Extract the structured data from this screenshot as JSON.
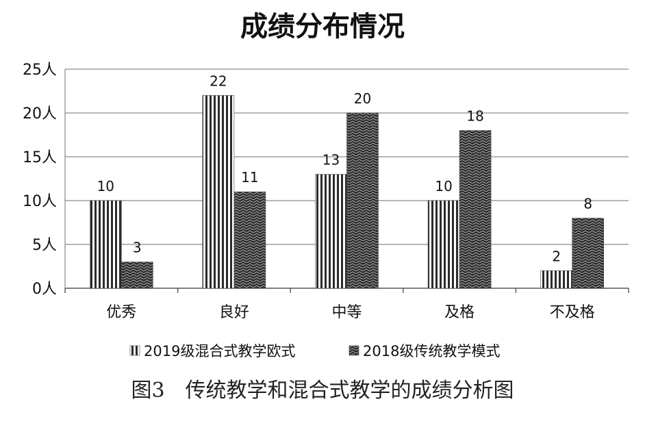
{
  "chart_data": {
    "type": "bar",
    "title": "成绩分布情况",
    "categories": [
      "优秀",
      "良好",
      "中等",
      "及格",
      "不及格"
    ],
    "series": [
      {
        "name": "2019级混合式教学欧式",
        "values": [
          10,
          22,
          13,
          10,
          2
        ],
        "pattern": "vertical-stripes"
      },
      {
        "name": "2018级传统教学模式",
        "values": [
          3,
          11,
          20,
          18,
          8
        ],
        "pattern": "zigzag-dark"
      }
    ],
    "yticks": [
      "0人",
      "5人",
      "10人",
      "15人",
      "20人",
      "25人"
    ],
    "ylim": [
      0,
      25
    ],
    "grid": true,
    "legend_position": "bottom",
    "xlabel": "",
    "ylabel": ""
  },
  "caption": "图3　传统教学和混合式教学的成绩分析图"
}
